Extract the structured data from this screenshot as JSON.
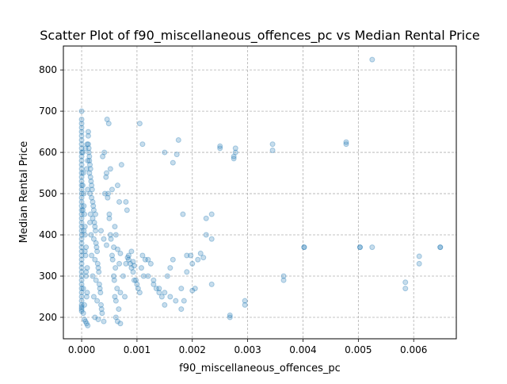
{
  "chart_data": {
    "type": "scatter",
    "title": "Scatter Plot of f90_miscellaneous_offences_pc vs Median Rental Price",
    "xlabel": "f90_miscellaneous_offences_pc",
    "ylabel": "Median Rental Price",
    "xlim": [
      -0.00033,
      0.00677
    ],
    "ylim": [
      148,
      858
    ],
    "xticks": [
      0.0,
      0.001,
      0.002,
      0.003,
      0.004,
      0.005,
      0.006
    ],
    "xtick_labels": [
      "0.000",
      "0.001",
      "0.002",
      "0.003",
      "0.004",
      "0.005",
      "0.006"
    ],
    "yticks": [
      200,
      300,
      400,
      500,
      600,
      700,
      800
    ],
    "ytick_labels": [
      "200",
      "300",
      "400",
      "500",
      "600",
      "700",
      "800"
    ],
    "grid": true,
    "marker_color": "#1f77b4",
    "marker_alpha": 0.25,
    "series": [
      {
        "name": "points",
        "x": [
          0.0,
          0.0,
          0.0,
          0.0,
          0.0,
          0.0,
          0.0,
          0.0,
          0.0,
          0.0,
          0.0,
          0.0,
          0.0,
          0.0,
          0.0,
          0.0,
          0.0,
          0.0,
          0.0,
          0.0,
          0.0,
          0.0,
          0.0,
          0.0,
          0.0,
          0.0,
          0.0,
          0.0,
          0.0,
          0.0,
          0.0,
          0.0,
          0.0,
          0.0,
          0.0,
          0.0,
          0.0,
          0.0,
          0.0,
          0.0,
          0.0,
          0.0,
          0.0,
          0.0,
          0.0,
          0.0,
          0.0,
          0.0,
          0.0,
          0.0,
          2e-05,
          3e-05,
          4e-05,
          5e-05,
          6e-05,
          7e-05,
          8e-05,
          9e-05,
          0.0001,
          0.00011,
          2e-05,
          4e-05,
          6e-05,
          8e-05,
          0.0001,
          3e-05,
          5e-05,
          7e-05,
          9e-05,
          0.00011,
          2e-05,
          4e-05,
          6e-05,
          8e-05,
          0.0001,
          3e-05,
          5e-05,
          7e-05,
          9e-05,
          0.00011,
          0.00012,
          0.00013,
          0.00014,
          0.00015,
          0.00016,
          0.00017,
          0.00018,
          0.0002,
          0.00022,
          0.00024,
          0.00012,
          0.00014,
          0.00016,
          0.00018,
          0.0002,
          0.00022,
          0.00024,
          0.00026,
          0.00028,
          0.0003,
          0.00012,
          0.00015,
          0.00018,
          0.00021,
          0.00024,
          0.00027,
          0.0003,
          0.00033,
          0.00036,
          0.0004,
          0.00013,
          0.00016,
          0.00019,
          0.00022,
          0.00025,
          0.00028,
          0.00031,
          0.00034,
          0.00037,
          0.00041,
          0.00014,
          0.00017,
          0.0002,
          0.00023,
          0.00026,
          0.00029,
          0.00032,
          0.00035,
          0.00038,
          0.00042,
          0.00045,
          0.00048,
          0.0005,
          0.00052,
          0.00055,
          0.00058,
          0.0006,
          0.00062,
          0.00065,
          0.00068,
          0.00044,
          0.00047,
          0.0005,
          0.00053,
          0.00056,
          0.00059,
          0.00062,
          0.00065,
          0.00068,
          0.0007,
          0.00046,
          0.00049,
          0.00052,
          0.00055,
          0.00058,
          0.00061,
          0.00064,
          0.00067,
          0.0007,
          0.00072,
          0.0008,
          0.00082,
          0.00085,
          0.00088,
          0.0009,
          0.00095,
          0.001,
          0.00105,
          0.0011,
          0.00115,
          0.00075,
          0.00078,
          0.0008,
          0.00085,
          0.0009,
          0.00093,
          0.00098,
          0.00102,
          0.00108,
          0.00112,
          0.0012,
          0.00125,
          0.0013,
          0.00135,
          0.0014,
          0.00145,
          0.0015,
          0.00155,
          0.0016,
          0.00165,
          0.0012,
          0.0013,
          0.0014,
          0.0015,
          0.0016,
          0.0017,
          0.0018,
          0.0019,
          0.002,
          0.0021,
          0.00175,
          0.0018,
          0.00185,
          0.0019,
          0.002,
          0.00205,
          0.00215,
          0.0022,
          0.00225,
          0.00235,
          0.00105,
          0.0011,
          0.0015,
          0.00165,
          0.00172,
          0.00183,
          0.00197,
          0.00225,
          0.00235,
          0.00235,
          0.0025,
          0.0025,
          0.00268,
          0.00268,
          0.00278,
          0.00278,
          0.00275,
          0.00275,
          0.00295,
          0.00295,
          0.00345,
          0.00345,
          0.00365,
          0.00365,
          0.00402,
          0.00402,
          0.00478,
          0.00478,
          0.00503,
          0.00503,
          0.00525,
          0.00525,
          0.00585,
          0.00585,
          0.0061,
          0.0061,
          0.00648,
          0.00648,
          0.0006,
          0.00062,
          0.00025,
          0.00015,
          0.00035,
          0.0004,
          0.00045,
          0.00065,
          0.0007,
          0.00083,
          0.00093,
          0.00095
        ],
        "y": [
          700,
          680,
          670,
          660,
          650,
          640,
          630,
          620,
          610,
          600,
          590,
          580,
          570,
          560,
          550,
          540,
          530,
          520,
          510,
          500,
          490,
          480,
          470,
          460,
          450,
          440,
          430,
          420,
          410,
          400,
          390,
          380,
          370,
          360,
          350,
          340,
          330,
          320,
          310,
          300,
          290,
          280,
          270,
          260,
          250,
          240,
          230,
          225,
          220,
          215,
          600,
          550,
          500,
          450,
          400,
          350,
          300,
          250,
          620,
          580,
          520,
          470,
          420,
          370,
          320,
          270,
          230,
          610,
          560,
          510,
          460,
          410,
          360,
          310,
          260,
          210,
          195,
          190,
          185,
          180,
          650,
          600,
          550,
          500,
          450,
          400,
          350,
          300,
          250,
          200,
          640,
          590,
          540,
          490,
          440,
          390,
          340,
          290,
          240,
          195,
          620,
          570,
          520,
          470,
          420,
          370,
          320,
          270,
          220,
          190,
          610,
          560,
          510,
          460,
          410,
          360,
          310,
          260,
          210,
          600,
          580,
          530,
          480,
          430,
          380,
          330,
          280,
          230,
          590,
          500,
          550,
          500,
          450,
          400,
          350,
          300,
          250,
          200,
          520,
          480,
          540,
          490,
          440,
          390,
          340,
          290,
          240,
          190,
          330,
          260,
          680,
          670,
          560,
          510,
          370,
          320,
          270,
          220,
          185,
          570,
          480,
          460,
          340,
          330,
          320,
          290,
          280,
          260,
          350,
          340,
          300,
          250,
          330,
          350,
          360,
          310,
          290,
          270,
          320,
          300,
          340,
          330,
          280,
          270,
          260,
          250,
          230,
          300,
          320,
          340,
          300,
          290,
          270,
          260,
          250,
          240,
          220,
          310,
          330,
          340,
          630,
          270,
          240,
          350,
          265,
          270,
          355,
          345,
          440,
          450,
          670,
          620,
          600,
          575,
          595,
          450,
          350,
          400,
          390,
          280,
          610,
          615,
          200,
          205,
          600,
          610,
          590,
          585,
          230,
          240,
          605,
          620,
          290,
          300,
          370,
          370,
          620,
          625,
          370,
          370,
          825,
          370,
          285,
          270,
          330,
          348,
          370,
          370,
          420,
          400,
          450,
          430,
          410,
          390,
          375,
          365,
          355,
          345,
          335,
          325
        ]
      }
    ]
  }
}
